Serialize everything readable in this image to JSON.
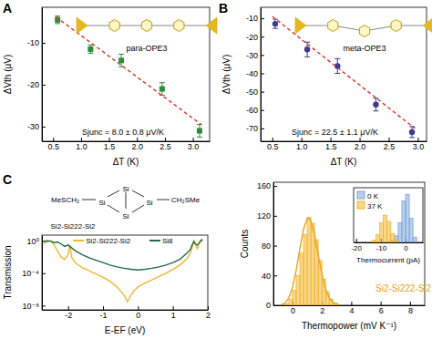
{
  "chart_data": [
    {
      "type": "scatter",
      "title": "A",
      "x_label": "ΔT (K)",
      "y_label": "ΔVth (μV)",
      "annotations": [
        "para-OPE3",
        "Sjunc = 8.0 ± 0.8 μV/K"
      ],
      "xlim": [
        0.3,
        3.3
      ],
      "ylim": [
        -33.5,
        -1.5
      ],
      "xticks": [
        0.5,
        {
          "value": 1,
          "label": "1.0"
        },
        1.5,
        {
          "value": 2,
          "label": "2.0"
        },
        2.5,
        {
          "value": 3,
          "label": "3.0"
        }
      ],
      "yticks": [
        -30,
        -20,
        -10
      ],
      "series": [
        {
          "type": "scatter",
          "marker": "square",
          "color": "#2e8b3e",
          "x": [
            0.58,
            1.17,
            1.72,
            2.45,
            3.12
          ],
          "values": [
            -4.5,
            -11.5,
            -14.2,
            -21,
            -31
          ],
          "errors": [
            0.9,
            1,
            1.5,
            1.5,
            1.5
          ]
        },
        {
          "type": "line",
          "line_style": "dashed",
          "color": "#d9342b",
          "x": [
            0.55,
            3.15
          ],
          "values": [
            -3.8,
            -29.5
          ]
        }
      ]
    },
    {
      "type": "scatter",
      "title": "B",
      "x_label": "ΔT (K)",
      "y_label": "ΔVth (μV)",
      "annotations": [
        "meta-OPE3",
        "Sjunc = 22.5 ± 1.1 μV/K"
      ],
      "xlim": [
        0.3,
        3.15
      ],
      "ylim": [
        -77,
        -4
      ],
      "xticks": [
        0.5,
        {
          "value": 1,
          "label": "1.0"
        },
        1.5,
        {
          "value": 2,
          "label": "2.0"
        },
        2.5,
        {
          "value": 3,
          "label": "3.0"
        }
      ],
      "yticks": [
        -70,
        -60,
        -50,
        -40,
        -30,
        -20,
        -10
      ],
      "series": [
        {
          "type": "scatter",
          "marker": "circle",
          "color": "#3b3b8f",
          "x": [
            0.55,
            1.1,
            1.62,
            2.28,
            2.9
          ],
          "values": [
            -13,
            -27,
            -36,
            -57,
            -72
          ],
          "errors": [
            2.5,
            4,
            4,
            3.5,
            3
          ]
        },
        {
          "type": "line",
          "line_style": "dashed",
          "color": "#d9342b",
          "x": [
            0.5,
            2.95
          ],
          "values": [
            -9,
            -70
          ]
        }
      ]
    },
    {
      "type": "line",
      "title": "C",
      "x_label": "E-EF (eV)",
      "y_label": "Transmission",
      "log": "y",
      "legend": "top",
      "annotations": [
        "MeSCH₂",
        "CH₂SMe",
        "Si",
        "Si",
        "Si",
        "Si",
        "Si2-Si222-Si2"
      ],
      "xlim": [
        -2.75,
        2.0
      ],
      "ylim": [
        3e-09,
        5
      ],
      "xticks": [
        -2,
        -1,
        0,
        1,
        2
      ],
      "yticks": [
        {
          "value": 1,
          "label": "10⁰"
        },
        {
          "value": 0.0001,
          "label": "10⁻⁴"
        },
        {
          "value": 1e-08,
          "label": "10⁻⁸"
        }
      ],
      "series": [
        {
          "name": "Si2-Si222-Si2",
          "type": "line",
          "color": "#f2b630",
          "x": [
            -2.7,
            -2.6,
            -2.5,
            -2.4,
            -2.3,
            -2.2,
            -2.1,
            -2.0,
            -1.95,
            -1.9,
            -1.8,
            -1.6,
            -1.4,
            -1.2,
            -1.0,
            -0.8,
            -0.6,
            -0.4,
            -0.3,
            -0.2,
            -0.1,
            0.0,
            0.2,
            0.4,
            0.6,
            0.8,
            1.0,
            1.2,
            1.4,
            1.5,
            1.55,
            1.6,
            1.65,
            1.7,
            1.75,
            1.8,
            1.85
          ],
          "values": [
            0.4,
            0.8,
            1.0,
            0.3,
            0.05,
            0.01,
            0.005,
            0.02,
            0.3,
            0.01,
            0.002,
            0.0005,
            0.0002,
            8e-05,
            3e-05,
            1e-05,
            2e-06,
            2e-07,
            3e-08,
            2e-07,
            8e-07,
            2e-06,
            6e-06,
            1.5e-05,
            4e-05,
            0.0001,
            0.0003,
            0.001,
            0.006,
            0.03,
            0.15,
            1.0,
            0.3,
            0.1,
            0.4,
            1.2,
            0.8
          ]
        },
        {
          "name": "Si8",
          "type": "line",
          "color": "#1f6b4a",
          "x": [
            -2.7,
            -2.6,
            -2.5,
            -2.4,
            -2.3,
            -2.2,
            -2.1,
            -2.0,
            -1.8,
            -1.6,
            -1.4,
            -1.2,
            -1.0,
            -0.8,
            -0.6,
            -0.4,
            -0.2,
            0.0,
            0.2,
            0.4,
            0.6,
            0.8,
            1.0,
            1.2,
            1.4,
            1.5,
            1.55,
            1.6,
            1.65,
            1.7,
            1.8,
            1.85
          ],
          "values": [
            0.8,
            1.0,
            0.9,
            0.6,
            0.7,
            0.4,
            0.2,
            0.3,
            0.06,
            0.02,
            0.008,
            0.004,
            0.002,
            0.001,
            0.0006,
            0.0004,
            0.0003,
            0.00025,
            0.0003,
            0.0004,
            0.0006,
            0.001,
            0.002,
            0.005,
            0.03,
            0.08,
            0.3,
            0.8,
            0.4,
            0.3,
            1.0,
            1.5
          ]
        }
      ]
    },
    {
      "type": "histogram",
      "x_label": "Thermopower (mV K⁻¹)",
      "y_label": "Counts",
      "annotations": [
        "Si2-Si222-Si2"
      ],
      "xlim": [
        -1.3,
        9
      ],
      "ylim": [
        0,
        165
      ],
      "xticks": [
        0,
        2,
        4,
        6,
        8
      ],
      "yticks": [
        0,
        40,
        80,
        120,
        160
      ],
      "color": "#f2b630",
      "bins": [
        -0.5,
        -0.25,
        0,
        0.25,
        0.5,
        0.75,
        1.0,
        1.25,
        1.5,
        1.75,
        2.0,
        2.25,
        2.5,
        2.75,
        3.0
      ],
      "counts": [
        2,
        8,
        20,
        40,
        70,
        95,
        118,
        110,
        88,
        60,
        35,
        18,
        8,
        3
      ],
      "series": [
        {
          "type": "line",
          "color": "#e8a21a",
          "x": [
            -0.75,
            -0.5,
            -0.25,
            0,
            0.25,
            0.5,
            0.75,
            1.0,
            1.1,
            1.25,
            1.5,
            1.75,
            2.0,
            2.25,
            2.5,
            2.75,
            3.0,
            3.25
          ],
          "values": [
            1,
            3,
            10,
            24,
            47,
            76,
            102,
            116,
            117,
            113,
            95,
            68,
            42,
            22,
            10,
            4,
            1.5,
            0.5
          ]
        }
      ]
    },
    {
      "type": "histogram",
      "x_label": "Thermocurrent (pA)",
      "legend": "top-left",
      "tick_labels": "x",
      "xlim": [
        -21,
        7
      ],
      "ylim": [
        0,
        125
      ],
      "xticks": [
        -20,
        -10,
        0
      ],
      "series": [
        {
          "name": "0 K",
          "color": "#7ea6dc",
          "bins": [
            -6,
            -4.5,
            -3,
            -1.5,
            0,
            1.5,
            3,
            4.5
          ],
          "counts": [
            4,
            15,
            45,
            95,
            110,
            55,
            12
          ]
        },
        {
          "name": "37 K",
          "color": "#f2b630",
          "bins": [
            -13.5,
            -12,
            -10.5,
            -9,
            -7.5,
            -6,
            -4.5,
            -3
          ],
          "counts": [
            5,
            18,
            45,
            62,
            48,
            20,
            5
          ]
        }
      ]
    }
  ]
}
